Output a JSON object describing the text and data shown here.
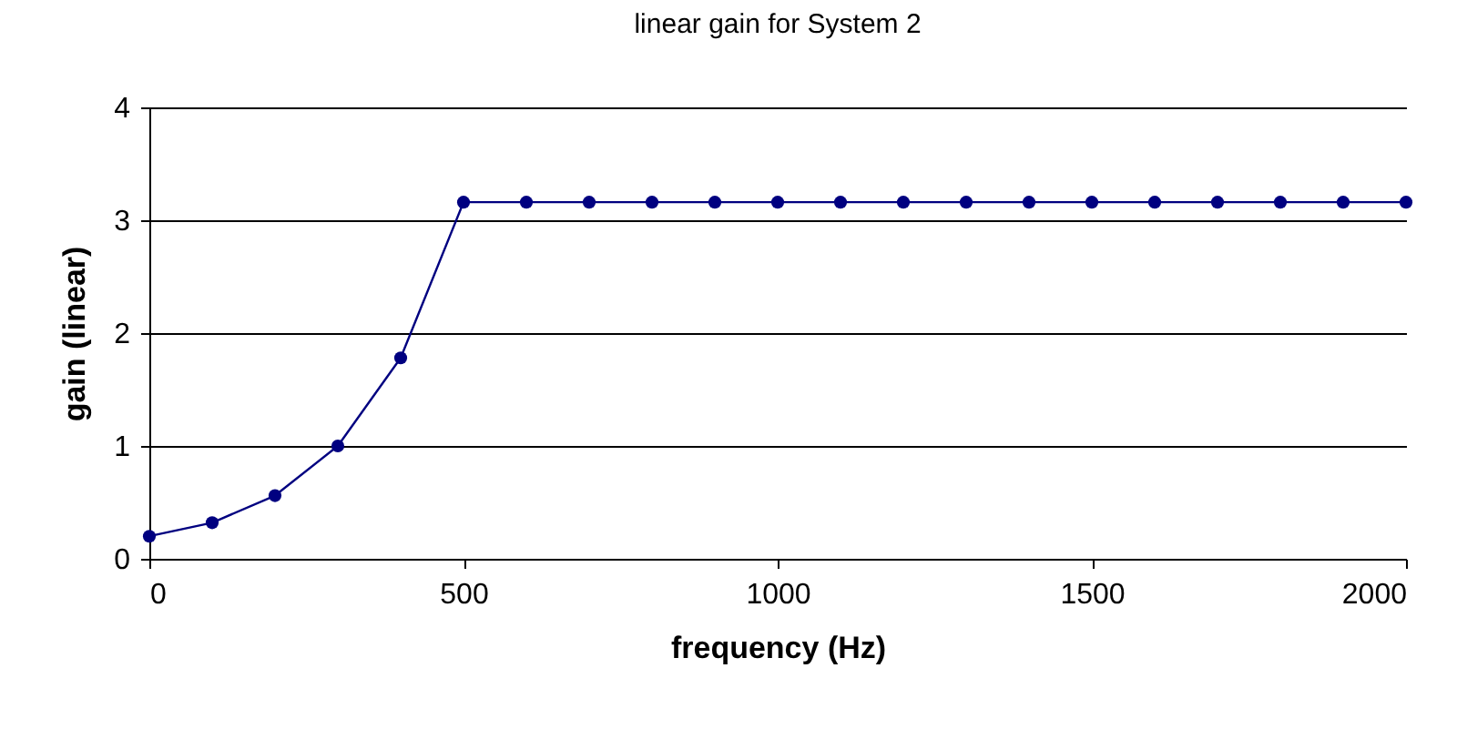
{
  "chart_data": {
    "type": "line",
    "title": "linear gain for System 2",
    "xlabel": "frequency (Hz)",
    "ylabel": "gain (linear)",
    "x": [
      0,
      100,
      200,
      300,
      400,
      500,
      600,
      700,
      800,
      900,
      1000,
      1100,
      1200,
      1300,
      1400,
      1500,
      1600,
      1700,
      1800,
      1900,
      2000
    ],
    "series": [
      {
        "color": "#000080",
        "values": [
          0.2,
          0.32,
          0.56,
          1.0,
          1.78,
          3.16,
          3.16,
          3.16,
          3.16,
          3.16,
          3.16,
          3.16,
          3.16,
          3.16,
          3.16,
          3.16,
          3.16,
          3.16,
          3.16,
          3.16,
          3.16
        ]
      }
    ],
    "xlim": [
      0,
      2000
    ],
    "xticks": [
      0,
      500,
      1000,
      1500,
      2000
    ],
    "ylim": [
      0,
      4
    ],
    "yticks": [
      0,
      1,
      2,
      3,
      4
    ],
    "grid": "y",
    "marker": "circle",
    "line_style": "solid"
  }
}
